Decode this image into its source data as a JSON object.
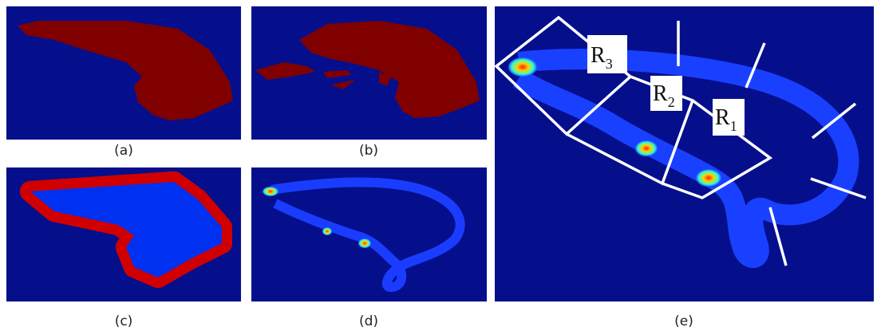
{
  "panels": [
    {
      "label": "(a)"
    },
    {
      "label": "(b)"
    },
    {
      "label": "(c)"
    },
    {
      "label": "(d)"
    },
    {
      "label": "(e)"
    }
  ],
  "regions": [
    {
      "letter": "R",
      "subscript": "3"
    },
    {
      "letter": "R",
      "subscript": "2"
    },
    {
      "letter": "R",
      "subscript": "1"
    }
  ]
}
